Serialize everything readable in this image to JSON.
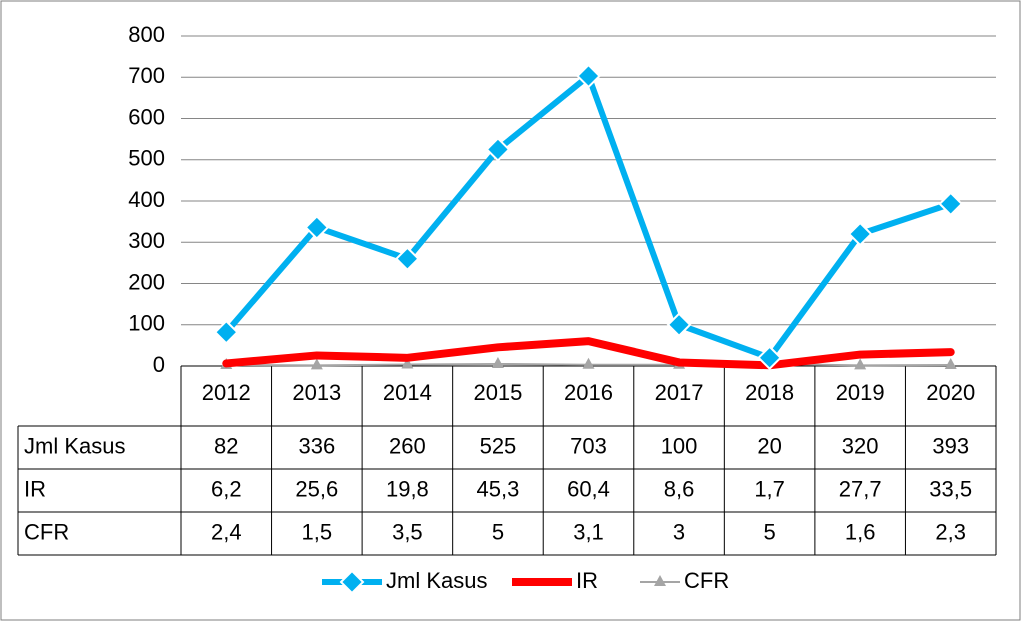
{
  "chart_data": {
    "type": "line",
    "categories": [
      "2012",
      "2013",
      "2014",
      "2015",
      "2016",
      "2017",
      "2018",
      "2019",
      "2020"
    ],
    "series": [
      {
        "name": "Jml Kasus",
        "color": "#00b0f0",
        "values": [
          82,
          336,
          260,
          525,
          703,
          100,
          20,
          320,
          393
        ]
      },
      {
        "name": "IR",
        "color": "#ff0000",
        "values": [
          6.2,
          25.6,
          19.8,
          45.3,
          60.4,
          8.6,
          1.7,
          27.7,
          33.5
        ],
        "value_labels": [
          "6,2",
          "25,6",
          "19,8",
          "45,3",
          "60,4",
          "8,6",
          "1,7",
          "27,7",
          "33,5"
        ]
      },
      {
        "name": "CFR",
        "color": "#a5a5a5",
        "values": [
          2.4,
          1.5,
          3.5,
          5,
          3.1,
          3,
          5,
          1.6,
          2.3
        ],
        "value_labels": [
          "2,4",
          "1,5",
          "3,5",
          "5",
          "3,1",
          "3",
          "5",
          "1,6",
          "2,3"
        ]
      }
    ],
    "ylim": [
      0,
      800
    ],
    "yticks": [
      0,
      100,
      200,
      300,
      400,
      500,
      600,
      700,
      800
    ],
    "grid": true,
    "legend": "bottom",
    "data_table": true
  }
}
